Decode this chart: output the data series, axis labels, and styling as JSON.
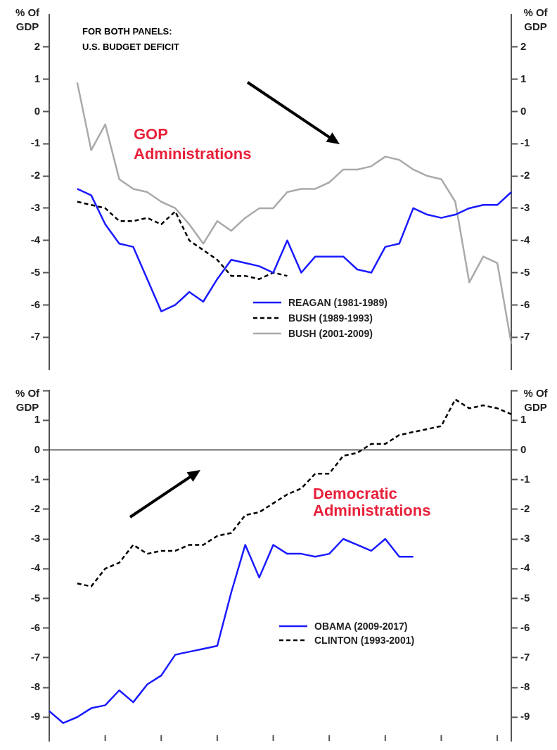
{
  "chart_data": [
    {
      "type": "line",
      "categories": [
        null,
        null,
        null,
        null,
        null,
        null,
        null,
        null,
        null,
        null,
        null,
        null,
        null,
        null,
        null,
        null,
        null,
        null,
        null,
        null,
        null,
        null,
        null,
        null,
        null,
        null,
        null,
        null,
        null,
        null,
        null,
        null,
        null,
        null
      ],
      "ylabel": "% Of GDP",
      "y2label": "% Of GDP",
      "ylim": [
        -8,
        3
      ],
      "yticks": [
        -7,
        -6,
        -5,
        -4,
        -3,
        -2,
        -1,
        0,
        1,
        2
      ],
      "y2lim": [
        -8,
        3
      ],
      "y2ticks": [
        -7,
        -6,
        -5,
        -4,
        -3,
        -2,
        -1,
        0,
        1,
        2
      ],
      "tick_labels": "y",
      "legend": "bottom right",
      "annotations": [
        "FOR BOTH PANELS:\nU.S. BUDGET DEFICIT",
        "GOP\nAdministrations"
      ],
      "series": [
        {
          "name": "REAGAN (1981-1989)",
          "color": "#1a1aff",
          "values": [
            null,
            null,
            -2.4,
            -2.6,
            -3.5,
            -4.1,
            -4.2,
            -5.2,
            -6.2,
            -6.0,
            -5.6,
            -5.9,
            -5.2,
            -4.6,
            -4.7,
            -4.8,
            -5.0,
            -4.0,
            -5.0,
            -4.5,
            -4.5,
            -4.5,
            -4.9,
            -5.0,
            -4.2,
            -4.1,
            -3.0,
            -3.2,
            -3.3,
            -3.2,
            -3.0,
            -2.9,
            -2.9,
            -2.5
          ]
        },
        {
          "name": "BUSH (1989-1993)",
          "color": "#000000",
          "line_style": "dashed",
          "values": [
            null,
            null,
            -2.8,
            -2.9,
            -3.0,
            -3.4,
            -3.4,
            -3.3,
            -3.5,
            -3.1,
            -4.0,
            -4.3,
            -4.6,
            -5.1,
            -5.1,
            -5.2,
            -5.0,
            -5.1,
            null,
            null,
            null,
            null,
            null,
            null,
            null,
            null,
            null,
            null,
            null,
            null,
            null,
            null,
            null,
            null
          ]
        },
        {
          "name": "BUSH (2001-2009)",
          "color": "#aaaaaa",
          "values": [
            null,
            null,
            0.9,
            -1.2,
            -0.4,
            -2.1,
            -2.4,
            -2.5,
            -2.8,
            -3.0,
            -3.5,
            -4.1,
            -3.4,
            -3.7,
            -3.3,
            -3.0,
            -3.0,
            -2.5,
            -2.4,
            -2.4,
            -2.2,
            -1.8,
            -1.8,
            -1.7,
            -1.4,
            -1.5,
            -1.8,
            -2.0,
            -2.1,
            -2.8,
            -5.3,
            -4.5,
            -4.7,
            -7.2
          ]
        }
      ]
    },
    {
      "type": "line",
      "categories": [
        null,
        null,
        null,
        null,
        null,
        null,
        null,
        null,
        null,
        null,
        null,
        null,
        null,
        null,
        null,
        null,
        null,
        null,
        null,
        null,
        null,
        null,
        null,
        null,
        null,
        null,
        null,
        null,
        null,
        null,
        null,
        null,
        null,
        null
      ],
      "ylabel": "% Of GDP",
      "y2label": "% Of GDP",
      "ylim": [
        -9.8,
        2
      ],
      "yticks": [
        -9,
        -8,
        -7,
        -6,
        -5,
        -4,
        -3,
        -2,
        -1,
        0,
        1,
        {
          "value": 2,
          "label": null
        }
      ],
      "y2lim": [
        -9.8,
        2
      ],
      "y2ticks": [
        -9,
        -8,
        -7,
        -6,
        -5,
        -4,
        -3,
        -2,
        -1,
        0,
        1,
        {
          "value": 2,
          "label": null
        }
      ],
      "tick_labels": "y",
      "legend": "bottom right",
      "annotations": [
        "Democratic\nAdministrations"
      ],
      "ref_lines": [
        {
          "axis": "y",
          "value": 0,
          "color": "#333333"
        }
      ],
      "series": [
        {
          "name": "OBAMA (2009-2017)",
          "color": "#1a1aff",
          "values": [
            -8.8,
            -9.2,
            -9.0,
            -8.7,
            -8.6,
            -8.1,
            -8.5,
            -7.9,
            -7.6,
            -6.9,
            -6.8,
            -6.7,
            -6.6,
            -4.8,
            -3.2,
            -4.3,
            -3.2,
            -3.5,
            -3.5,
            -3.6,
            -3.5,
            -3.0,
            -3.2,
            -3.4,
            -3.0,
            -3.6,
            -3.6,
            null,
            null,
            null,
            null,
            null,
            null,
            null
          ]
        },
        {
          "name": "CLINTON (1993-2001)",
          "color": "#000000",
          "line_style": "dashed",
          "values": [
            null,
            null,
            -4.5,
            -4.6,
            -4.0,
            -3.8,
            -3.2,
            -3.5,
            -3.4,
            -3.4,
            -3.2,
            -3.2,
            -2.9,
            -2.8,
            -2.2,
            -2.1,
            -1.8,
            -1.5,
            -1.3,
            -0.8,
            -0.8,
            -0.2,
            -0.1,
            0.2,
            0.2,
            0.5,
            0.6,
            0.7,
            0.8,
            1.7,
            1.4,
            1.5,
            1.4,
            1.2
          ]
        }
      ]
    }
  ]
}
